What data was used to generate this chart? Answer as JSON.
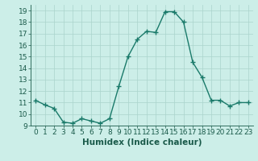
{
  "x": [
    0,
    1,
    2,
    3,
    4,
    5,
    6,
    7,
    8,
    9,
    10,
    11,
    12,
    13,
    14,
    15,
    16,
    17,
    18,
    19,
    20,
    21,
    22,
    23
  ],
  "y": [
    11.2,
    10.8,
    10.5,
    9.3,
    9.2,
    9.6,
    9.4,
    9.2,
    9.6,
    12.4,
    15.0,
    16.5,
    17.2,
    17.1,
    18.9,
    18.9,
    18.0,
    14.5,
    13.2,
    11.2,
    11.2,
    10.7,
    11.0,
    11.0
  ],
  "line_color": "#1a7a6a",
  "marker": "+",
  "marker_size": 4,
  "bg_color": "#cceee8",
  "grid_color": "#aad4cc",
  "xlabel": "Humidex (Indice chaleur)",
  "xlim": [
    -0.5,
    23.5
  ],
  "ylim": [
    9,
    19.5
  ],
  "yticks": [
    9,
    10,
    11,
    12,
    13,
    14,
    15,
    16,
    17,
    18,
    19
  ],
  "xticks": [
    0,
    1,
    2,
    3,
    4,
    5,
    6,
    7,
    8,
    9,
    10,
    11,
    12,
    13,
    14,
    15,
    16,
    17,
    18,
    19,
    20,
    21,
    22,
    23
  ],
  "title_color": "#1a5a4a",
  "font_size": 6.5
}
